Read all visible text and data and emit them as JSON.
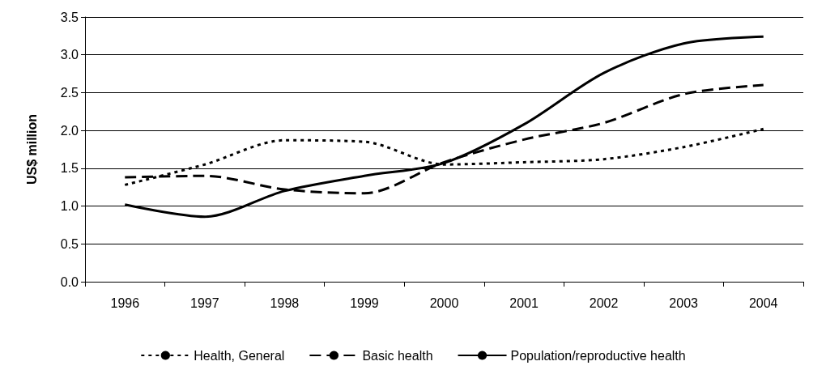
{
  "chart_data": {
    "type": "line",
    "ylabel": "US$ million",
    "categories": [
      "1996",
      "1997",
      "1998",
      "1999",
      "2000",
      "2001",
      "2002",
      "2003",
      "2004"
    ],
    "series": [
      {
        "name": "Health, General",
        "color": "#000000",
        "line_style": "dotted",
        "values": [
          1.28,
          1.55,
          1.87,
          1.85,
          1.55,
          1.58,
          1.62,
          1.78,
          2.02
        ]
      },
      {
        "name": "Basic health",
        "color": "#000000",
        "line_style": "dashed",
        "values": [
          1.38,
          1.4,
          1.22,
          1.17,
          1.58,
          1.88,
          2.1,
          2.48,
          2.6
        ]
      },
      {
        "name": "Population/reproductive health",
        "color": "#000000",
        "line_style": "solid",
        "values": [
          1.02,
          0.86,
          1.2,
          1.4,
          1.57,
          2.08,
          2.76,
          3.15,
          3.24
        ]
      }
    ],
    "ylim": [
      0,
      3.5
    ],
    "yticks": [
      {
        "value": 0,
        "label": "0.0"
      },
      {
        "value": 0.5,
        "label": "0.5"
      },
      {
        "value": 1,
        "label": "1.0"
      },
      {
        "value": 1.5,
        "label": "1.5"
      },
      {
        "value": 2,
        "label": "2.0"
      },
      {
        "value": 2.5,
        "label": "2.5"
      },
      {
        "value": 3,
        "label": "3.0"
      },
      {
        "value": 3.5,
        "label": "3.5"
      }
    ],
    "grid": "y",
    "legend": "bottom",
    "marker": "none"
  }
}
